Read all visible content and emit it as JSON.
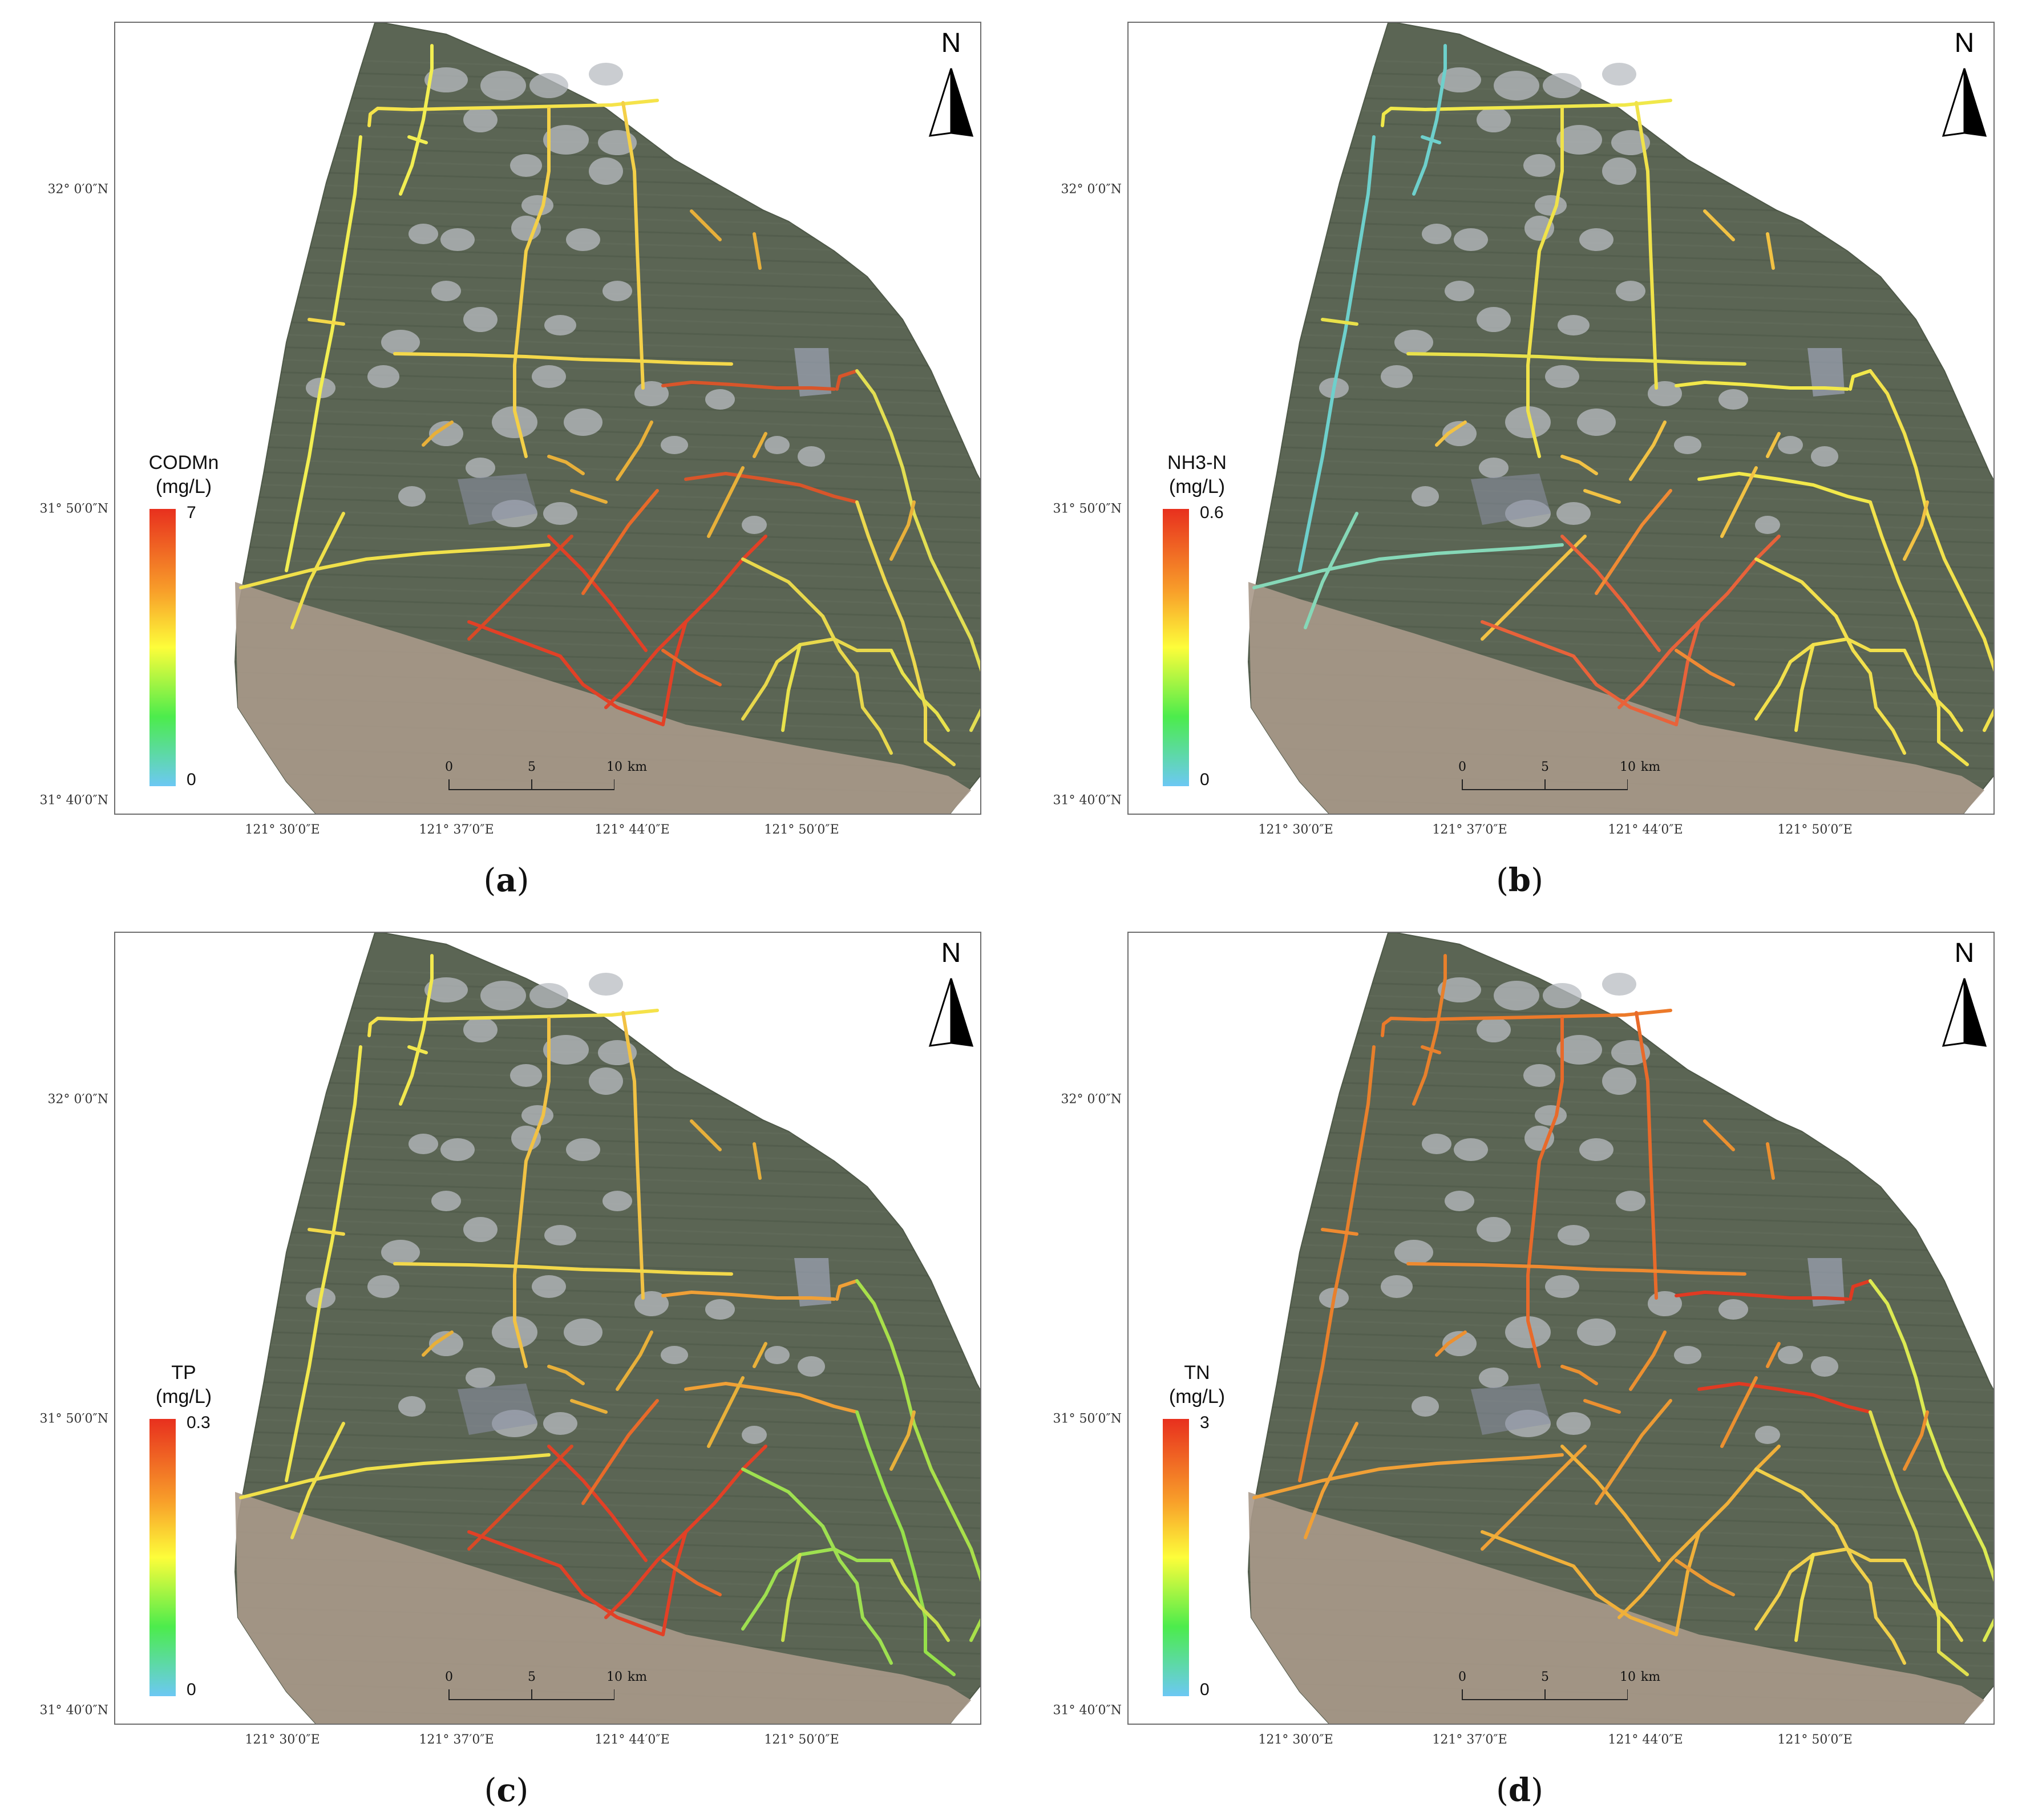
{
  "panels": [
    {
      "id": "a",
      "caption": "a",
      "legend": {
        "title_line1": "CODMn",
        "title_line2": "(mg/L)",
        "max": "7",
        "min": "0"
      },
      "north_label": "N",
      "lat_labels": [
        "32° 0′0″N",
        "31° 50′0″N",
        "31° 40′0″N"
      ],
      "lon_labels": [
        "121° 30′0″E",
        "121° 37′0″E",
        "121° 44′0″E",
        "121° 50′0″E"
      ],
      "scale": {
        "ticks": [
          "0",
          "5",
          "10"
        ],
        "unit": "km"
      },
      "palette": {
        "north_main": "#f5e34a",
        "west_main": "#f2ee52",
        "center_v": "#f4d048",
        "h_mid": "#f4d84a",
        "right_arc": "#d8552a",
        "east_coast": "#e2de52",
        "east_lower": "#ecd84e",
        "s1": "#f0e04a",
        "s2": "#d84a26",
        "s3": "#e24026",
        "s4": "#e86a2a",
        "s5": "#e8d84c",
        "s6": "#e8e24c",
        "misc": "#e8b03a"
      }
    },
    {
      "id": "b",
      "caption": "b",
      "legend": {
        "title_line1": "NH3-N",
        "title_line2": "(mg/L)",
        "max": "0.6",
        "min": "0"
      },
      "north_label": "N",
      "lat_labels": [
        "32° 0′0″N",
        "31° 50′0″N",
        "31° 40′0″N"
      ],
      "lon_labels": [
        "121° 30′0″E",
        "121° 37′0″E",
        "121° 44′0″E",
        "121° 50′0″E"
      ],
      "scale": {
        "ticks": [
          "0",
          "5",
          "10"
        ],
        "unit": "km"
      },
      "palette": {
        "north_main": "#f0e84a",
        "west_main": "#6ed0cc",
        "center_v": "#f0e24a",
        "h_mid": "#e8e04a",
        "right_arc": "#f2e84a",
        "east_coast": "#f2e24c",
        "east_lower": "#f2e24c",
        "s1": "#86d8b8",
        "s2": "#f2c244",
        "s3": "#e8623a",
        "s4": "#f08a34",
        "s5": "#f2e04c",
        "s6": "#f2e24c",
        "misc": "#f2c244"
      }
    },
    {
      "id": "c",
      "caption": "c",
      "legend": {
        "title_line1": "TP",
        "title_line2": "(mg/L)",
        "max": "0.3",
        "min": "0"
      },
      "north_label": "N",
      "lat_labels": [
        "32° 0′0″N",
        "31° 50′0″N",
        "31° 40′0″N"
      ],
      "lon_labels": [
        "121° 30′0″E",
        "121° 37′0″E",
        "121° 44′0″E",
        "121° 50′0″E"
      ],
      "scale": {
        "ticks": [
          "0",
          "5",
          "10"
        ],
        "unit": "km"
      },
      "palette": {
        "north_main": "#f5e24a",
        "west_main": "#f2e84e",
        "center_v": "#f2c244",
        "h_mid": "#f2d84a",
        "right_arc": "#f0a036",
        "east_coast": "#a8e04a",
        "east_lower": "#96e04a",
        "s1": "#f0e04a",
        "s2": "#d84a26",
        "s3": "#e24026",
        "s4": "#e86a2a",
        "s5": "#9ee050",
        "s6": "#c8e04c",
        "misc": "#e8b03a"
      }
    },
    {
      "id": "d",
      "caption": "d",
      "legend": {
        "title_line1": "TN",
        "title_line2": "(mg/L)",
        "max": "3",
        "min": "0"
      },
      "north_label": "N",
      "lat_labels": [
        "32° 0′0″N",
        "31° 50′0″N",
        "31° 40′0″N"
      ],
      "lon_labels": [
        "121° 30′0″E",
        "121° 37′0″E",
        "121° 44′0″E",
        "121° 50′0″E"
      ],
      "scale": {
        "ticks": [
          "0",
          "5",
          "10"
        ],
        "unit": "km"
      },
      "palette": {
        "north_main": "#ec7a2a",
        "west_main": "#e8802c",
        "center_v": "#e86a2a",
        "h_mid": "#ee8a30",
        "right_arc": "#e03a22",
        "east_coast": "#dcea52",
        "east_lower": "#e0e04e",
        "s1": "#f0a036",
        "s2": "#f0a036",
        "s3": "#f0b03a",
        "s4": "#ec9a34",
        "s5": "#f0d04a",
        "s6": "#f0e04c",
        "misc": "#ec9030"
      }
    }
  ]
}
